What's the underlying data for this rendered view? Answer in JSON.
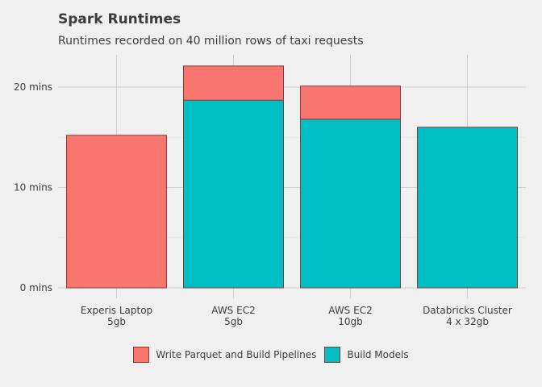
{
  "chart_data": {
    "type": "bar",
    "stacked": true,
    "title": "Spark Runtimes",
    "subtitle": "Runtimes recorded on 40 million rows of taxi requests",
    "xlabel": "",
    "ylabel": "",
    "categories": [
      {
        "line1": "Experis Laptop",
        "line2": "5gb"
      },
      {
        "line1": "AWS EC2",
        "line2": "5gb"
      },
      {
        "line1": "AWS EC2",
        "line2": "10gb"
      },
      {
        "line1": "Databricks Cluster",
        "line2": "4 x 32gb"
      }
    ],
    "series": [
      {
        "name": "Build Models",
        "color": "#00bfc4",
        "values": [
          0,
          18.7,
          16.8,
          16.0
        ]
      },
      {
        "name": "Write Parquet and Build Pipelines",
        "color": "#f8766d",
        "values": [
          15.2,
          3.4,
          3.3,
          0
        ]
      }
    ],
    "yticks": [
      0,
      10,
      20
    ],
    "ytick_labels": [
      "0 mins",
      "10 mins",
      "20 mins"
    ],
    "ylim": [
      0,
      23
    ],
    "grid": true,
    "legend_position": "bottom",
    "legend": [
      {
        "name": "Write Parquet and Build Pipelines",
        "color": "#f8766d"
      },
      {
        "name": "Build Models",
        "color": "#00bfc4"
      }
    ],
    "bar_outline_color": "#8b3a3a"
  }
}
